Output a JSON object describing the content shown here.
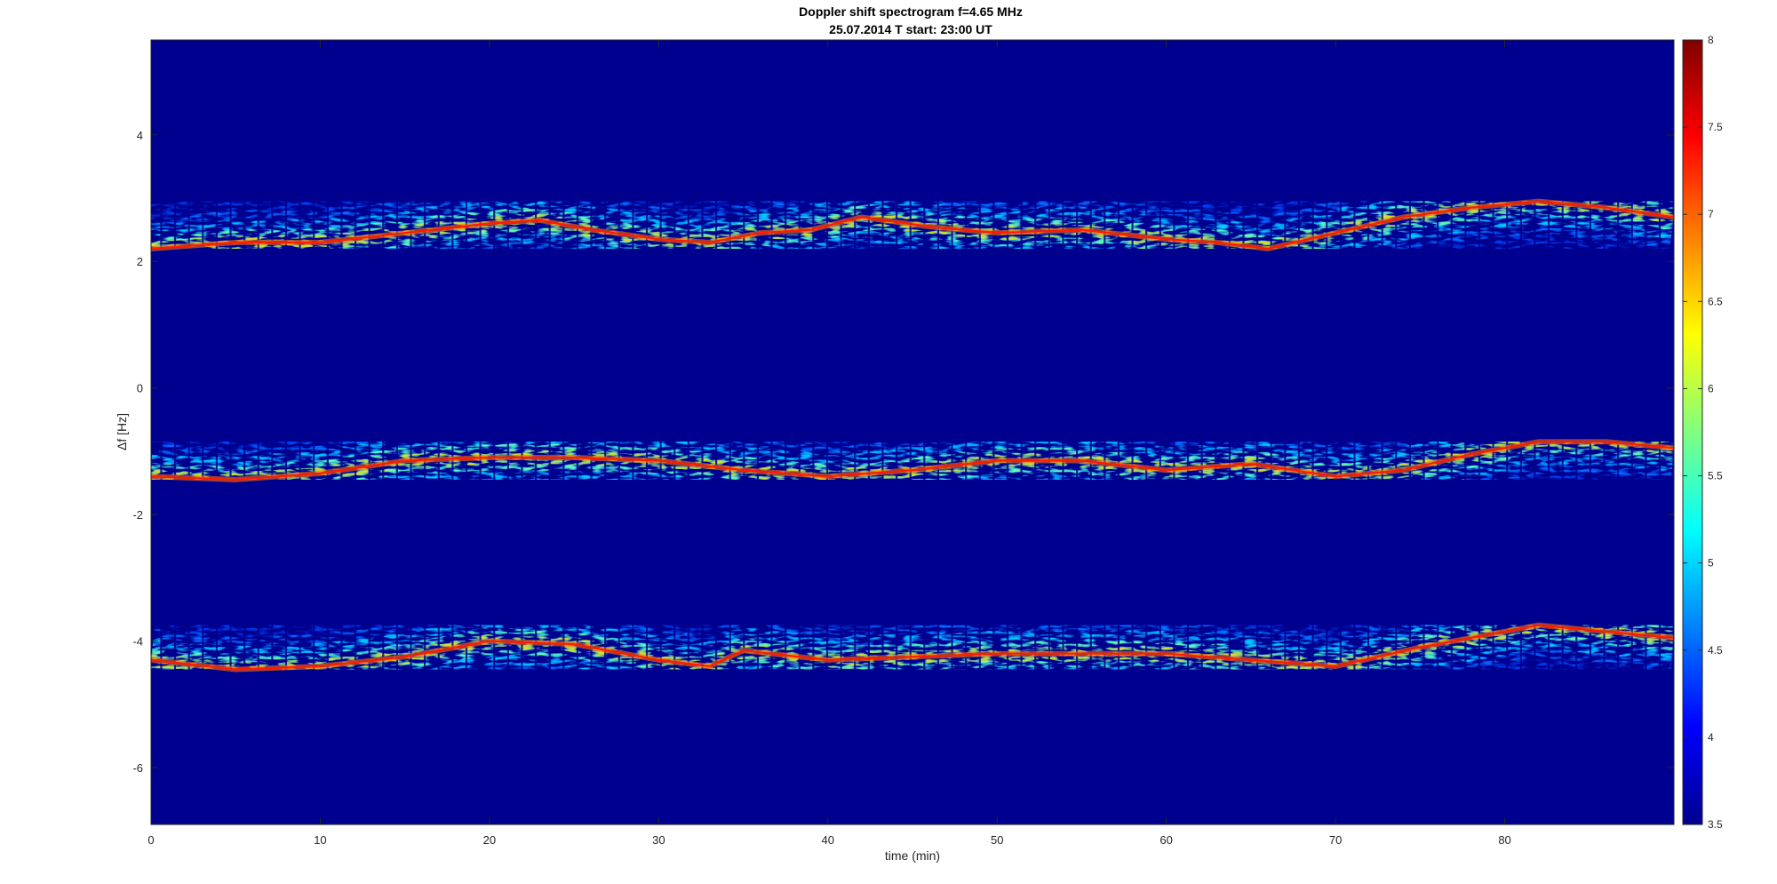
{
  "chart_data": {
    "type": "heatmap",
    "title": "Doppler shift spectrogram f=4.65 MHz",
    "subtitle": "25.07.2014   T start: 23:00 UT",
    "xlabel": "time (min)",
    "ylabel": "Δf [Hz]",
    "xlim": [
      0,
      90
    ],
    "ylim": [
      -6.9,
      5.5
    ],
    "x_ticks": [
      "0",
      "10",
      "20",
      "30",
      "40",
      "50",
      "60",
      "70",
      "80"
    ],
    "y_ticks": [
      "4",
      "2",
      "0",
      "-2",
      "-4",
      "-6"
    ],
    "colorbar": {
      "range": [
        3.5,
        8
      ],
      "ticks": [
        "8",
        "7.5",
        "7",
        "6.5",
        "6",
        "5.5",
        "5",
        "4.5",
        "4",
        "3.5"
      ],
      "colormap": "jet"
    },
    "colors": {
      "background": "#00008f",
      "peak": "#ff1a00",
      "band_low": "#0044ff",
      "band_mid": "#00d2ff"
    },
    "series": [
      {
        "x": [
          0,
          5,
          10,
          15,
          20,
          23,
          26,
          30,
          33,
          36,
          39,
          42,
          46,
          50,
          55,
          60,
          63,
          66,
          70,
          74,
          78,
          82,
          86,
          90
        ],
        "y": [
          2.2,
          2.3,
          2.3,
          2.45,
          2.6,
          2.65,
          2.5,
          2.35,
          2.3,
          2.45,
          2.5,
          2.7,
          2.55,
          2.45,
          2.5,
          2.35,
          2.3,
          2.2,
          2.45,
          2.7,
          2.85,
          2.95,
          2.85,
          2.7
        ]
      },
      {
        "x": [
          0,
          5,
          10,
          15,
          20,
          25,
          30,
          35,
          40,
          45,
          50,
          55,
          60,
          65,
          70,
          74,
          78,
          82,
          86,
          90
        ],
        "y": [
          -1.4,
          -1.45,
          -1.35,
          -1.15,
          -1.1,
          -1.1,
          -1.15,
          -1.3,
          -1.4,
          -1.3,
          -1.15,
          -1.15,
          -1.3,
          -1.2,
          -1.4,
          -1.3,
          -1.05,
          -0.85,
          -0.85,
          -0.95
        ]
      },
      {
        "x": [
          0,
          5,
          10,
          15,
          20,
          25,
          30,
          33,
          35,
          40,
          45,
          50,
          55,
          60,
          65,
          70,
          75,
          80,
          82,
          86,
          90
        ],
        "y": [
          -4.3,
          -4.45,
          -4.4,
          -4.25,
          -4.0,
          -4.05,
          -4.3,
          -4.4,
          -4.15,
          -4.3,
          -4.25,
          -4.2,
          -4.2,
          -4.2,
          -4.3,
          -4.4,
          -4.1,
          -3.85,
          -3.75,
          -3.85,
          -3.95
        ]
      }
    ]
  }
}
